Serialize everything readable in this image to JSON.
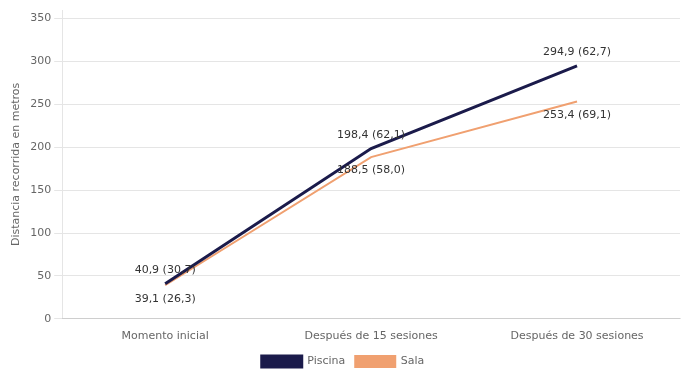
{
  "chart_data": {
    "type": "line",
    "categories": [
      "Momento inicial",
      "Después de 15 sesiones",
      "Después de 30 sesiones"
    ],
    "series": [
      {
        "name": "Sala",
        "color": "#F0A070",
        "values": [
          39.1,
          188.5,
          253.4
        ],
        "value_labels": [
          "39,1 (26,3)",
          "188,5 (58,0)",
          "253,4 (69,1)"
        ]
      },
      {
        "name": "Piscina",
        "color": "#1B1B4B",
        "values": [
          40.9,
          198.4,
          294.9
        ],
        "value_labels": [
          "40,9 (30,7)",
          "198,4 (62,1)",
          "294,9 (62,7)"
        ]
      }
    ],
    "ylabel": "Distancia recorrida en metros",
    "ylim": [
      0,
      360
    ],
    "yticks": [
      0,
      50,
      100,
      150,
      200,
      250,
      300,
      350
    ],
    "grid": true,
    "legend": "bottom",
    "data_labels": true
  }
}
